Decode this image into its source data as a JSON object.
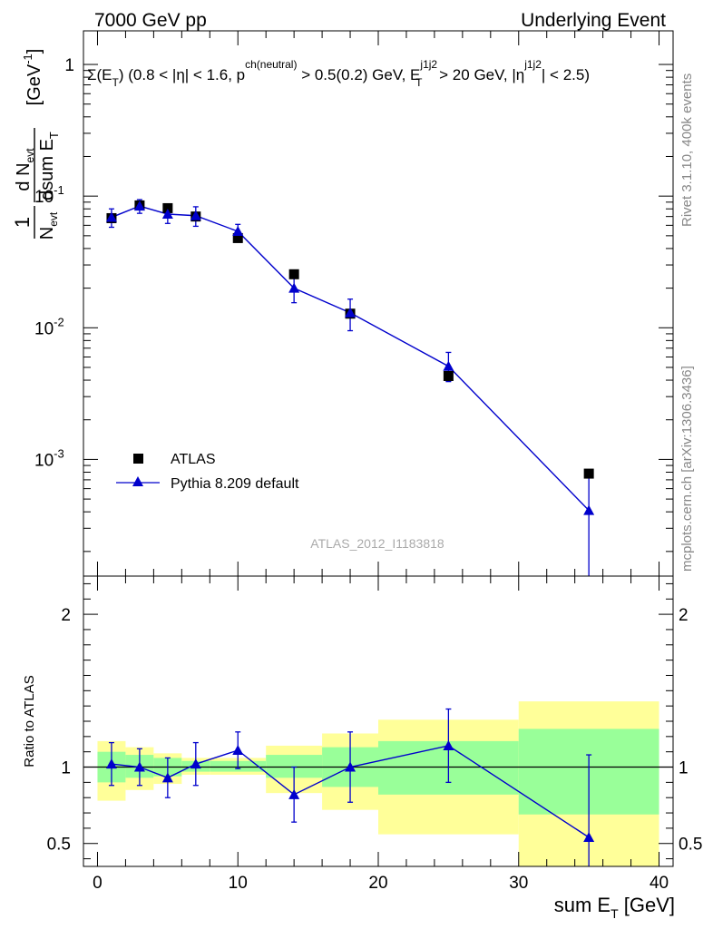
{
  "header": {
    "left": "7000 GeV pp",
    "right": "Underlying Event"
  },
  "side": {
    "rivet": "Rivet 3.1.10,  400k events",
    "mcplots": "mcplots.cern.ch [arXiv:1306.3436]"
  },
  "colors": {
    "mc": "#0000cc",
    "band_inner": "#99ff99",
    "band_outer": "#ffff99",
    "data": "#000000"
  },
  "chart_data": [
    {
      "type": "scatter",
      "title": "Σ(E_T) (0.8 < |η| < 1.6, p^ch(neutral) > 0.5(0.2) GeV, E_T^j1j2 > 20 GeV, |η^j1j2| < 2.5)",
      "ylabel": "1/N_evt dN_evt/dsum E_T [GeV^-1]",
      "watermark": "ATLAS_2012_I1183818",
      "yscale": "log",
      "xlim": [
        -1,
        41
      ],
      "ylim": [
        0.00013,
        1.8
      ],
      "y_ticks": [
        {
          "value": 1,
          "label": "1"
        },
        {
          "value": 0.1,
          "label": "10^-1"
        },
        {
          "value": 0.01,
          "label": "10^-2"
        },
        {
          "value": 0.001,
          "label": "10^-3"
        }
      ],
      "legend_position": "bottom-left",
      "series": [
        {
          "name": "ATLAS",
          "marker": "square",
          "x": [
            1,
            3,
            5,
            7,
            10,
            14,
            18,
            25,
            35
          ],
          "y": [
            0.068,
            0.085,
            0.081,
            0.07,
            0.048,
            0.0255,
            0.0128,
            0.0043,
            0.00078
          ]
        },
        {
          "name": "Pythia 8.209 default",
          "marker": "triangle",
          "line": true,
          "x": [
            1,
            3,
            5,
            7,
            10,
            14,
            18,
            25,
            35
          ],
          "y": [
            0.069,
            0.084,
            0.073,
            0.071,
            0.054,
            0.02,
            0.013,
            0.0051,
            0.00041
          ],
          "y_err_low": [
            0.011,
            0.01,
            0.011,
            0.012,
            0.007,
            0.0045,
            0.0035,
            0.0012,
            0.0004
          ],
          "y_err_high": [
            0.011,
            0.01,
            0.011,
            0.012,
            0.007,
            0.0045,
            0.0035,
            0.0014,
            0.0004
          ]
        }
      ]
    },
    {
      "type": "scatter",
      "ylabel": "Ratio to ATLAS",
      "xlabel": "sum E_T [GeV]",
      "xlim": [
        -1,
        41
      ],
      "ylim": [
        0.35,
        2.25
      ],
      "x_ticks": [
        0,
        10,
        20,
        30,
        40
      ],
      "y_ticks": [
        0.5,
        1,
        2
      ],
      "reference_line": 1,
      "bands": {
        "bin_low": [
          0,
          2,
          4,
          6,
          8,
          12,
          16,
          20,
          30
        ],
        "bin_high": [
          2,
          4,
          6,
          8,
          12,
          16,
          20,
          30,
          40
        ],
        "inner_low": [
          0.9,
          0.93,
          0.94,
          0.97,
          0.97,
          0.93,
          0.87,
          0.82,
          0.69
        ],
        "inner_high": [
          1.1,
          1.08,
          1.06,
          1.04,
          1.04,
          1.08,
          1.13,
          1.17,
          1.25
        ],
        "outer_low": [
          0.78,
          0.85,
          0.89,
          0.95,
          0.95,
          0.83,
          0.72,
          0.56,
          0.25
        ],
        "outer_high": [
          1.17,
          1.13,
          1.09,
          1.06,
          1.06,
          1.14,
          1.22,
          1.31,
          1.43
        ]
      },
      "series": [
        {
          "name": "Pythia 8.209 default",
          "x": [
            1,
            3,
            5,
            7,
            10,
            14,
            18,
            25,
            35
          ],
          "y": [
            1.02,
            1.0,
            0.93,
            1.02,
            1.11,
            0.82,
            1.0,
            1.14,
            0.54
          ],
          "y_err_low": [
            0.14,
            0.12,
            0.13,
            0.14,
            0.12,
            0.18,
            0.23,
            0.24,
            0.54
          ],
          "y_err_high": [
            0.14,
            0.12,
            0.13,
            0.14,
            0.12,
            0.18,
            0.23,
            0.24,
            0.54
          ]
        }
      ]
    }
  ]
}
